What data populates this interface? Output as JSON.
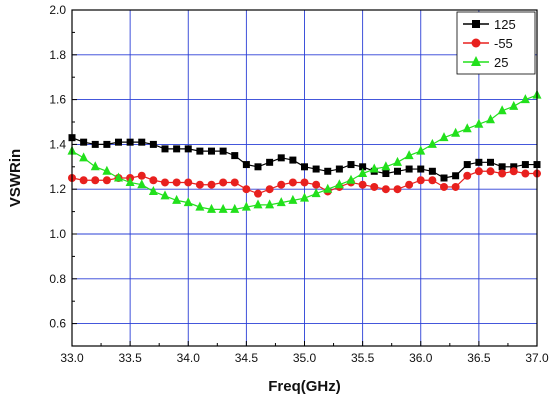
{
  "chart_data": {
    "type": "line",
    "title": "",
    "xlabel": "Freq(GHz)",
    "ylabel": "VSWRin",
    "xlim": [
      33.0,
      37.0
    ],
    "ylim": [
      0.5,
      2.0
    ],
    "xticks": [
      33.0,
      33.5,
      34.0,
      34.5,
      35.0,
      35.5,
      36.0,
      36.5,
      37.0
    ],
    "yticks": [
      0.6,
      0.8,
      1.0,
      1.2,
      1.4,
      1.6,
      1.8,
      2.0
    ],
    "xtick_labels": [
      "33.0",
      "33.5",
      "34.0",
      "34.5",
      "35.0",
      "35.5",
      "36.0",
      "36.5",
      "37.0"
    ],
    "ytick_labels": [
      "0.6",
      "0.8",
      "1.0",
      "1.2",
      "1.4",
      "1.6",
      "1.8",
      "2.0"
    ],
    "grid": true,
    "grid_color": "#2a3fd6",
    "legend_position": "top-right",
    "x": [
      33.0,
      33.1,
      33.2,
      33.3,
      33.4,
      33.5,
      33.6,
      33.7,
      33.8,
      33.9,
      34.0,
      34.1,
      34.2,
      34.3,
      34.4,
      34.5,
      34.6,
      34.7,
      34.8,
      34.9,
      35.0,
      35.1,
      35.2,
      35.3,
      35.4,
      35.5,
      35.6,
      35.7,
      35.8,
      35.9,
      36.0,
      36.1,
      36.2,
      36.3,
      36.4,
      36.5,
      36.6,
      36.7,
      36.8,
      36.9,
      37.0
    ],
    "series": [
      {
        "name": "125",
        "color": "#000000",
        "marker": "square",
        "values": [
          1.43,
          1.41,
          1.4,
          1.4,
          1.41,
          1.41,
          1.41,
          1.4,
          1.38,
          1.38,
          1.38,
          1.37,
          1.37,
          1.37,
          1.35,
          1.31,
          1.3,
          1.32,
          1.34,
          1.33,
          1.3,
          1.29,
          1.28,
          1.29,
          1.31,
          1.3,
          1.28,
          1.27,
          1.28,
          1.29,
          1.29,
          1.28,
          1.25,
          1.26,
          1.31,
          1.32,
          1.32,
          1.3,
          1.3,
          1.31,
          1.31
        ]
      },
      {
        "name": "-55",
        "color": "#e8201e",
        "marker": "circle",
        "values": [
          1.25,
          1.24,
          1.24,
          1.24,
          1.25,
          1.25,
          1.26,
          1.24,
          1.23,
          1.23,
          1.23,
          1.22,
          1.22,
          1.23,
          1.23,
          1.2,
          1.18,
          1.2,
          1.22,
          1.23,
          1.23,
          1.22,
          1.19,
          1.21,
          1.23,
          1.22,
          1.21,
          1.2,
          1.2,
          1.22,
          1.24,
          1.24,
          1.21,
          1.21,
          1.26,
          1.28,
          1.28,
          1.27,
          1.28,
          1.27,
          1.27
        ]
      },
      {
        "name": "25",
        "color": "#22e01c",
        "marker": "triangle",
        "values": [
          1.37,
          1.34,
          1.3,
          1.28,
          1.25,
          1.23,
          1.22,
          1.19,
          1.17,
          1.15,
          1.14,
          1.12,
          1.11,
          1.11,
          1.11,
          1.12,
          1.13,
          1.13,
          1.14,
          1.15,
          1.16,
          1.18,
          1.2,
          1.22,
          1.24,
          1.27,
          1.29,
          1.3,
          1.32,
          1.35,
          1.37,
          1.4,
          1.43,
          1.45,
          1.47,
          1.49,
          1.51,
          1.55,
          1.57,
          1.6,
          1.62
        ]
      }
    ]
  }
}
